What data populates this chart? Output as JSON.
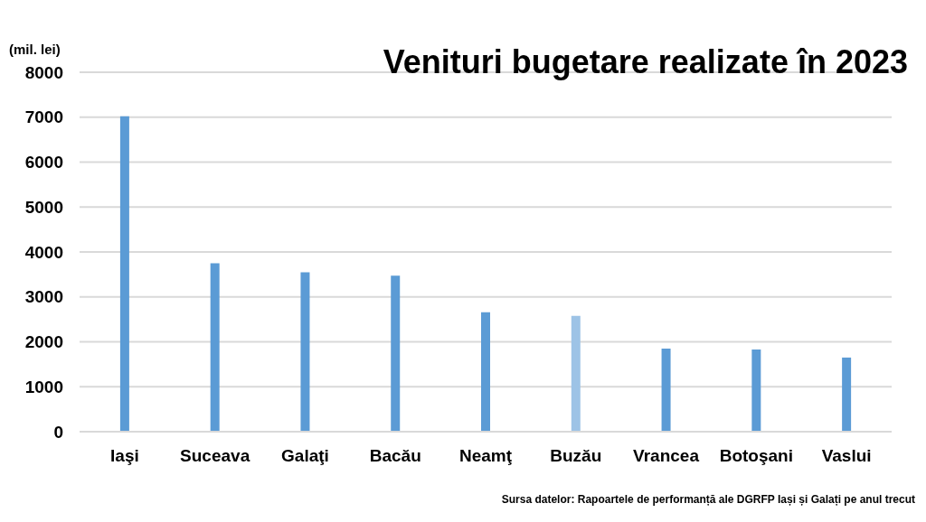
{
  "chart_data": {
    "type": "bar",
    "title": "Venituri bugetare realizate în 2023",
    "ylabel": "(mil. lei)",
    "categories": [
      "Iaşi",
      "Suceava",
      "Galaţi",
      "Bacău",
      "Neamţ",
      "Buzău",
      "Vrancea",
      "Botoşani",
      "Vaslui"
    ],
    "values": [
      7020,
      3750,
      3550,
      3470,
      2660,
      2580,
      1850,
      1830,
      1650
    ],
    "colors": [
      "#5b9bd5",
      "#5b9bd5",
      "#5b9bd5",
      "#5b9bd5",
      "#5b9bd5",
      "#9dc3e6",
      "#5b9bd5",
      "#5b9bd5",
      "#5b9bd5"
    ],
    "ylim": [
      0,
      8000
    ],
    "yticks": [
      0,
      1000,
      2000,
      3000,
      4000,
      5000,
      6000,
      7000,
      8000
    ],
    "grid": "y",
    "annotations": [
      "Sursa datelor: Rapoartele de performanță ale DGRFP Iași și Galați pe anul trecut"
    ]
  }
}
